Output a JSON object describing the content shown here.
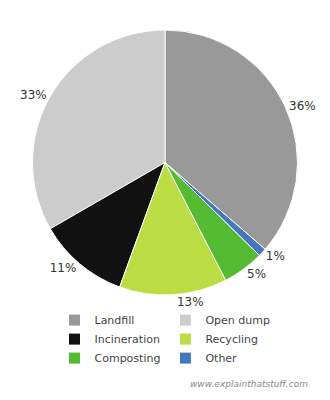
{
  "chart_data": {
    "type": "pie",
    "categories": [
      "Landfill",
      "Open dump",
      "Incineration",
      "Recycling",
      "Composting",
      "Other"
    ],
    "values": [
      36,
      33,
      11,
      13,
      5,
      1
    ],
    "value_labels": [
      "36%",
      "33%",
      "11%",
      "13%",
      "5%",
      "1%"
    ],
    "colors": [
      "#999999",
      "#cccccc",
      "#111111",
      "#bbdd44",
      "#55bb33",
      "#4477bb"
    ],
    "data_labels": true,
    "legend": "bottom",
    "annotations": [
      "www.explainthatstuff.com"
    ]
  }
}
